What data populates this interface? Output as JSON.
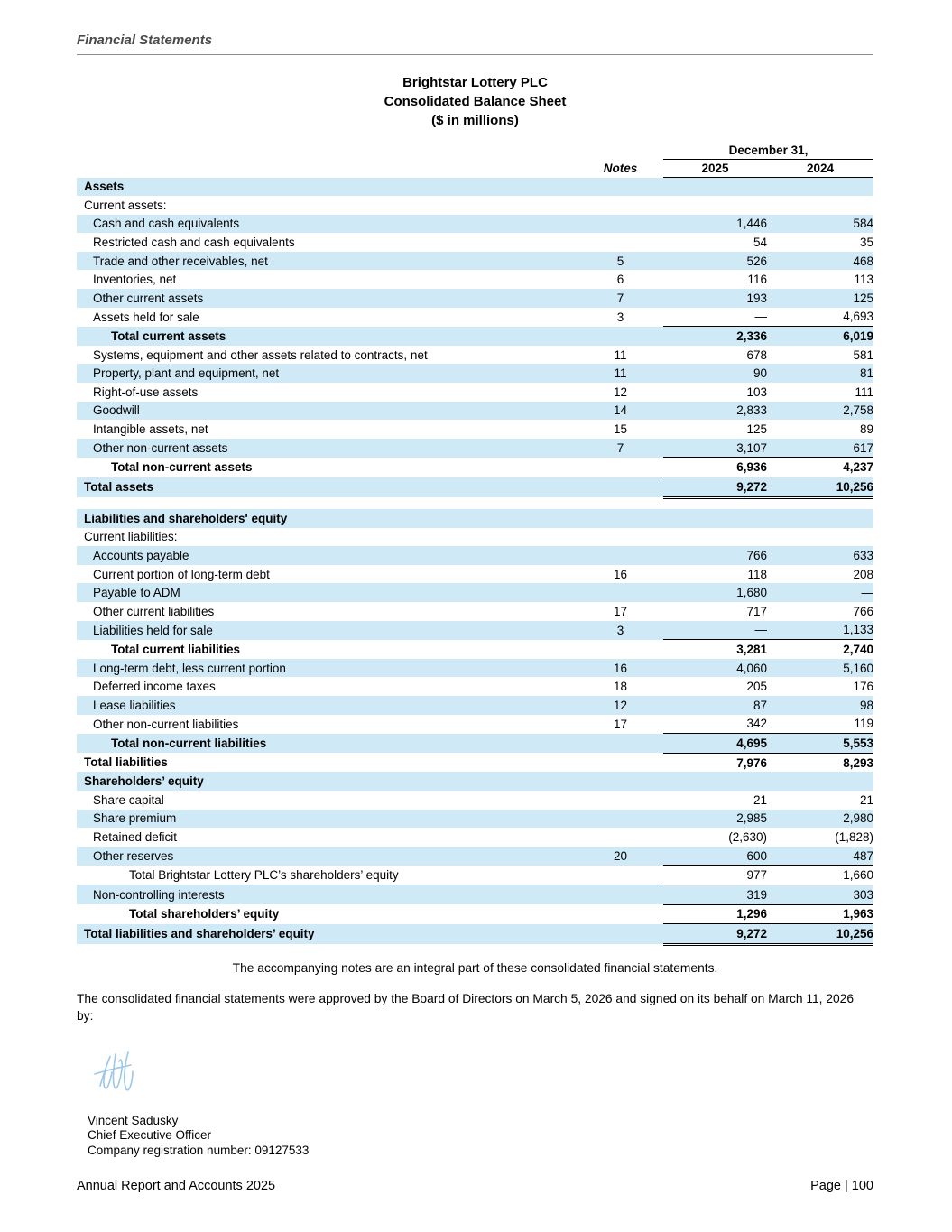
{
  "header": {
    "section_title": "Financial Statements"
  },
  "title": {
    "company": "Brightstar Lottery PLC",
    "statement": "Consolidated Balance Sheet",
    "units": "($ in millions)"
  },
  "table": {
    "date_header": "December 31,",
    "columns": {
      "notes": "Notes",
      "y2025": "2025",
      "y2024": "2024"
    },
    "rows": [
      {
        "label": "Assets",
        "indent": 0,
        "bold": true,
        "shaded": true
      },
      {
        "label": "Current assets:",
        "indent": 0,
        "shaded": false
      },
      {
        "label": "Cash and cash equivalents",
        "v2025": "1,446",
        "v2024": "584",
        "indent": 1,
        "shaded": true
      },
      {
        "label": "Restricted cash and cash equivalents",
        "v2025": "54",
        "v2024": "35",
        "indent": 1,
        "shaded": false
      },
      {
        "label": "Trade and other receivables, net",
        "note": "5",
        "v2025": "526",
        "v2024": "468",
        "indent": 1,
        "shaded": true
      },
      {
        "label": "Inventories, net",
        "note": "6",
        "v2025": "116",
        "v2024": "113",
        "indent": 1,
        "shaded": false
      },
      {
        "label": "Other current assets",
        "note": "7",
        "v2025": "193",
        "v2024": "125",
        "indent": 1,
        "shaded": true
      },
      {
        "label": "Assets held for sale",
        "note": "3",
        "v2025": "—",
        "v2024": "4,693",
        "indent": 1,
        "shaded": false,
        "border": "u"
      },
      {
        "label": "Total current assets",
        "v2025": "2,336",
        "v2024": "6,019",
        "indent": 2,
        "bold": true,
        "shaded": true
      },
      {
        "label": "Systems, equipment and other assets related to contracts, net",
        "note": "11",
        "v2025": "678",
        "v2024": "581",
        "indent": 1,
        "shaded": false
      },
      {
        "label": "Property, plant and equipment, net",
        "note": "11",
        "v2025": "90",
        "v2024": "81",
        "indent": 1,
        "shaded": true
      },
      {
        "label": "Right-of-use assets",
        "note": "12",
        "v2025": "103",
        "v2024": "111",
        "indent": 1,
        "shaded": false
      },
      {
        "label": "Goodwill",
        "note": "14",
        "v2025": "2,833",
        "v2024": "2,758",
        "indent": 1,
        "shaded": true
      },
      {
        "label": "Intangible assets, net",
        "note": "15",
        "v2025": "125",
        "v2024": "89",
        "indent": 1,
        "shaded": false
      },
      {
        "label": "Other non-current assets",
        "note": "7",
        "v2025": "3,107",
        "v2024": "617",
        "indent": 1,
        "shaded": true,
        "border": "u"
      },
      {
        "label": "Total non-current assets",
        "v2025": "6,936",
        "v2024": "4,237",
        "indent": 2,
        "bold": true,
        "shaded": false,
        "border": "u"
      },
      {
        "label": "Total assets",
        "v2025": "9,272",
        "v2024": "10,256",
        "indent": 0,
        "bold": true,
        "shaded": true,
        "border": "uu"
      },
      {
        "type": "spacer"
      },
      {
        "label": "Liabilities and shareholders' equity",
        "indent": 0,
        "bold": true,
        "shaded": true
      },
      {
        "label": "Current liabilities:",
        "indent": 0,
        "shaded": false
      },
      {
        "label": "Accounts payable",
        "v2025": "766",
        "v2024": "633",
        "indent": 1,
        "shaded": true
      },
      {
        "label": "Current portion of long-term debt",
        "note": "16",
        "v2025": "118",
        "v2024": "208",
        "indent": 1,
        "shaded": false
      },
      {
        "label": "Payable to ADM",
        "v2025": "1,680",
        "v2024": "—",
        "indent": 1,
        "shaded": true
      },
      {
        "label": "Other current liabilities",
        "note": "17",
        "v2025": "717",
        "v2024": "766",
        "indent": 1,
        "shaded": false
      },
      {
        "label": "Liabilities held for sale",
        "note": "3",
        "v2025": "—",
        "v2024": "1,133",
        "indent": 1,
        "shaded": true,
        "border": "u"
      },
      {
        "label": "Total current liabilities",
        "v2025": "3,281",
        "v2024": "2,740",
        "indent": 2,
        "bold": true,
        "shaded": false
      },
      {
        "label": "Long-term debt, less current portion",
        "note": "16",
        "v2025": "4,060",
        "v2024": "5,160",
        "indent": 1,
        "shaded": true
      },
      {
        "label": "Deferred income taxes",
        "note": "18",
        "v2025": "205",
        "v2024": "176",
        "indent": 1,
        "shaded": false
      },
      {
        "label": "Lease liabilities",
        "note": "12",
        "v2025": "87",
        "v2024": "98",
        "indent": 1,
        "shaded": true
      },
      {
        "label": "Other non-current liabilities",
        "note": "17",
        "v2025": "342",
        "v2024": "119",
        "indent": 1,
        "shaded": false,
        "border": "u"
      },
      {
        "label": "Total non-current liabilities",
        "v2025": "4,695",
        "v2024": "5,553",
        "indent": 2,
        "bold": true,
        "shaded": true,
        "border": "u"
      },
      {
        "label": "Total liabilities",
        "v2025": "7,976",
        "v2024": "8,293",
        "indent": 0,
        "bold": true,
        "shaded": false
      },
      {
        "label": "Shareholders’ equity",
        "indent": 0,
        "bold": true,
        "shaded": true
      },
      {
        "label": "Share capital",
        "v2025": "21",
        "v2024": "21",
        "indent": 1,
        "shaded": false
      },
      {
        "label": "Share premium",
        "v2025": "2,985",
        "v2024": "2,980",
        "indent": 1,
        "shaded": true
      },
      {
        "label": "Retained deficit",
        "v2025": "(2,630)",
        "v2024": "(1,828)",
        "indent": 1,
        "shaded": false
      },
      {
        "label": "Other reserves",
        "note": "20",
        "v2025": "600",
        "v2024": "487",
        "indent": 1,
        "shaded": true,
        "border": "u"
      },
      {
        "label": "Total Brightstar Lottery PLC’s shareholders’ equity",
        "v2025": "977",
        "v2024": "1,660",
        "indent": 3,
        "shaded": false,
        "border": "u"
      },
      {
        "label": "Non-controlling interests",
        "v2025": "319",
        "v2024": "303",
        "indent": 1,
        "shaded": true,
        "border": "u"
      },
      {
        "label": "Total shareholders’ equity",
        "v2025": "1,296",
        "v2024": "1,963",
        "indent": 3,
        "bold": true,
        "shaded": false,
        "border": "u"
      },
      {
        "label": "Total liabilities and shareholders’ equity",
        "v2025": "9,272",
        "v2024": "10,256",
        "indent": 0,
        "bold": true,
        "shaded": true,
        "border": "uu"
      }
    ]
  },
  "notes_footer": "The accompanying notes are an integral part of these consolidated financial statements.",
  "approval": "The consolidated financial statements were approved by the Board of Directors on March 5, 2026 and signed on its behalf on March 11, 2026 by:",
  "signatory": {
    "name": "Vincent Sadusky",
    "title": "Chief Executive Officer",
    "registration": "Company registration number: 09127533"
  },
  "footer": {
    "left": "Annual Report and Accounts 2025",
    "right": "Page | 100"
  },
  "colors": {
    "stripe": "#cfe9f6",
    "section_header_text": "#4a4a4a",
    "signature": "#9cc7e6"
  }
}
